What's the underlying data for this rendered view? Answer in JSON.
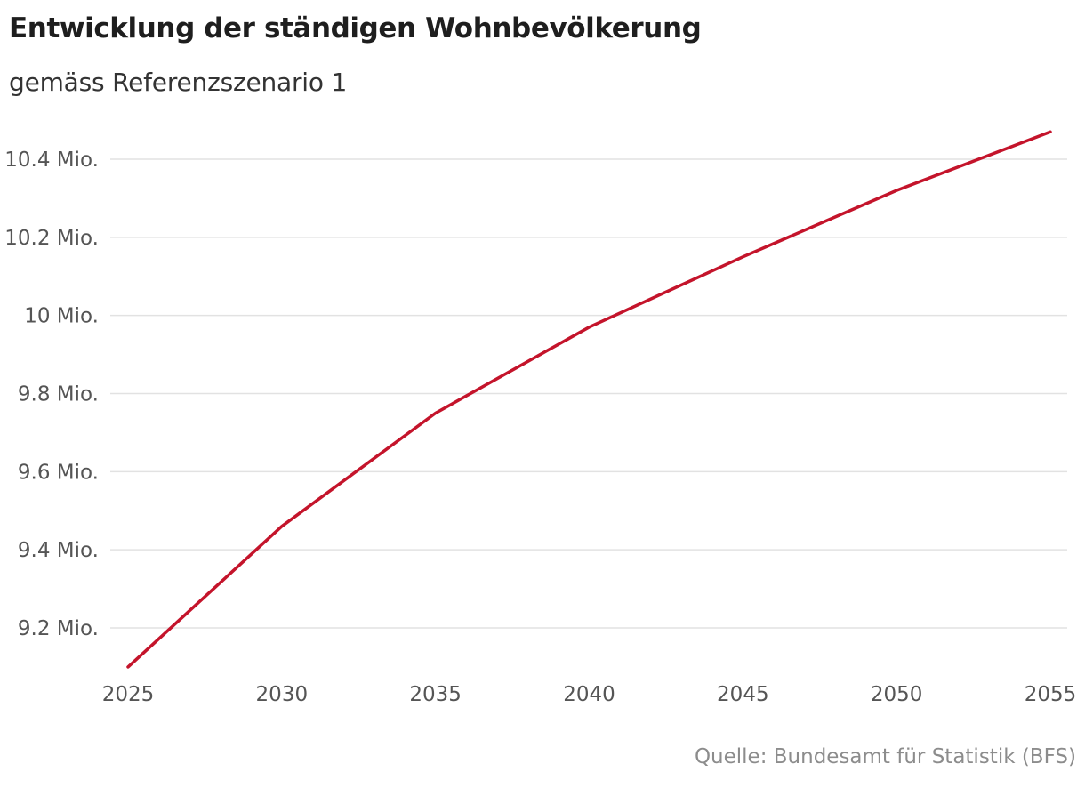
{
  "chart_data": {
    "type": "line",
    "title": "Entwicklung der ständigen Wohnbevölkerung",
    "subtitle": "gemäss Referenzszenario 1",
    "xlabel": "",
    "ylabel": "",
    "x": [
      2025,
      2030,
      2035,
      2040,
      2045,
      2050,
      2055
    ],
    "series": [
      {
        "values": [
          9.1,
          9.46,
          9.75,
          9.97,
          10.15,
          10.32,
          10.47
        ]
      }
    ],
    "xlim": [
      2025,
      2055
    ],
    "ylim": [
      9.1,
      10.47
    ],
    "yticks": [
      9.2,
      9.4,
      9.6,
      9.8,
      10.0,
      10.2,
      10.4
    ],
    "ytick_labels": [
      "9.2 Mio.",
      "9.4 Mio.",
      "9.6 Mio.",
      "9.8 Mio.",
      "10 Mio.",
      "10.2 Mio.",
      "10.4 Mio."
    ],
    "xticks": [
      2025,
      2030,
      2035,
      2040,
      2045,
      2050,
      2055
    ],
    "xtick_labels": [
      "2025",
      "2030",
      "2035",
      "2040",
      "2045",
      "2050",
      "2055"
    ],
    "grid": true,
    "line_color": "#c4142b",
    "grid_color": "#e2e2e2",
    "source": "Quelle: Bundesamt für Statistik (BFS)"
  }
}
